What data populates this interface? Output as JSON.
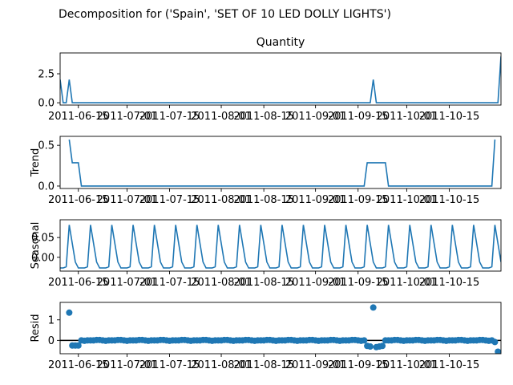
{
  "figure": {
    "suptitle": "Decomposition for ('Spain', 'SET OF 10 LED DOLLY LIGHTS')",
    "line_color": "#1f77b4"
  },
  "chart_data": [
    {
      "type": "line",
      "title": "Quantity",
      "ylabel": "",
      "xrange": [
        "2011-06-09",
        "2011-11-01"
      ],
      "x_tick_labels": [
        "2011-06-15",
        "2011-07-01",
        "2011-07-15",
        "2011-08-01",
        "2011-08-15",
        "2011-09-01",
        "2011-09-15",
        "2011-10-01",
        "2011-10-15"
      ],
      "ylim": [
        -0.2,
        4.3
      ],
      "y_ticks": [
        0.0,
        2.5
      ],
      "y_tick_labels": [
        "0.0",
        "2.5"
      ],
      "series": [
        {
          "points": [
            [
              "2011-06-09",
              2
            ],
            [
              "2011-06-10",
              0
            ],
            [
              "2011-06-11",
              0
            ],
            [
              "2011-06-12",
              2
            ],
            [
              "2011-06-13",
              0
            ],
            [
              "2011-09-19",
              0
            ],
            [
              "2011-09-20",
              2
            ],
            [
              "2011-09-21",
              0
            ],
            [
              "2011-10-31",
              0
            ],
            [
              "2011-11-01",
              4
            ]
          ]
        }
      ]
    },
    {
      "type": "line",
      "title": "",
      "ylabel": "Trend",
      "xrange": [
        "2011-06-09",
        "2011-11-01"
      ],
      "x_tick_labels": [
        "2011-06-15",
        "2011-07-01",
        "2011-07-15",
        "2011-08-01",
        "2011-08-15",
        "2011-09-01",
        "2011-09-15",
        "2011-10-01",
        "2011-10-15"
      ],
      "ylim": [
        -0.03,
        0.61
      ],
      "y_ticks": [
        0.0,
        0.5
      ],
      "y_tick_labels": [
        "0.0",
        "0.5"
      ],
      "series": [
        {
          "points": [
            [
              "2011-06-12",
              0.571
            ],
            [
              "2011-06-13",
              0.286
            ],
            [
              "2011-06-14",
              0.286
            ],
            [
              "2011-06-15",
              0.286
            ],
            [
              "2011-06-16",
              0
            ],
            [
              "2011-09-17",
              0
            ],
            [
              "2011-09-18",
              0.286
            ],
            [
              "2011-09-24",
              0.286
            ],
            [
              "2011-09-25",
              0
            ],
            [
              "2011-10-29",
              0
            ],
            [
              "2011-10-30",
              0.571
            ]
          ]
        }
      ]
    },
    {
      "type": "line",
      "title": "",
      "ylabel": "Seasonal",
      "xrange": [
        "2011-06-09",
        "2011-11-01"
      ],
      "x_tick_labels": [
        "2011-06-15",
        "2011-07-01",
        "2011-07-15",
        "2011-08-01",
        "2011-08-15",
        "2011-09-01",
        "2011-09-15",
        "2011-10-01",
        "2011-10-15"
      ],
      "ylim": [
        -0.035,
        0.095
      ],
      "y_ticks": [
        0.0,
        0.05
      ],
      "y_tick_labels": [
        "0.00",
        "0.05"
      ],
      "pattern": {
        "period_days": 7,
        "first_peak": "2011-06-12",
        "cycle_values": [
          0.082,
          0.035,
          -0.012,
          -0.027,
          -0.027,
          -0.027,
          -0.024
        ]
      }
    },
    {
      "type": "scatter",
      "title": "",
      "ylabel": "Resid",
      "xrange": [
        "2011-06-09",
        "2011-11-01"
      ],
      "x_tick_labels": [
        "2011-06-15",
        "2011-07-01",
        "2011-07-15",
        "2011-08-01",
        "2011-08-15",
        "2011-09-01",
        "2011-09-15",
        "2011-10-01",
        "2011-10-15"
      ],
      "ylim": [
        -0.65,
        1.85
      ],
      "y_ticks": [
        0,
        1
      ],
      "y_tick_labels": [
        "0",
        "1"
      ],
      "zero_line": true,
      "outliers": [
        [
          "2011-06-12",
          1.35
        ],
        [
          "2011-06-13",
          -0.25
        ],
        [
          "2011-06-14",
          -0.25
        ],
        [
          "2011-06-15",
          -0.25
        ],
        [
          "2011-09-18",
          -0.27
        ],
        [
          "2011-09-19",
          -0.3
        ],
        [
          "2011-09-20",
          1.6
        ],
        [
          "2011-09-21",
          -0.33
        ],
        [
          "2011-09-22",
          -0.3
        ],
        [
          "2011-09-23",
          -0.27
        ],
        [
          "2011-10-30",
          -0.08
        ],
        [
          "2011-10-31",
          -0.55
        ]
      ],
      "resid_span": [
        "2011-06-12",
        "2011-10-31"
      ],
      "base_cycle": [
        0.0,
        0.0,
        0.02,
        0.02,
        0.0,
        -0.02,
        0.0
      ]
    }
  ]
}
